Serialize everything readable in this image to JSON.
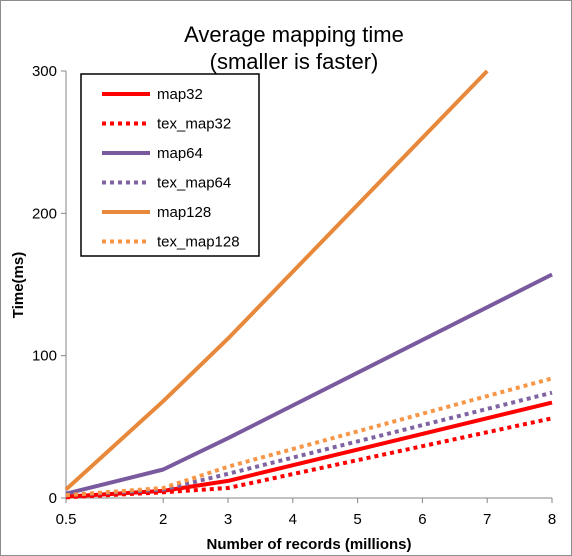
{
  "chart_data": {
    "type": "line",
    "title": "Average mapping time",
    "subtitle": "(smaller is faster)",
    "xlabel": "Number of records (millions)",
    "ylabel": "Time(ms)",
    "xlim": [
      0.5,
      8
    ],
    "ylim": [
      0,
      300
    ],
    "xticks": [
      "0.5",
      "2",
      "3",
      "4",
      "5",
      "6",
      "7",
      "8"
    ],
    "xtick_values": [
      0.5,
      2,
      3,
      4,
      5,
      6,
      7,
      8
    ],
    "yticks": [
      "0",
      "100",
      "200",
      "300"
    ],
    "ytick_values": [
      0,
      100,
      200,
      300
    ],
    "grid": false,
    "legend_position": "top-left",
    "series": [
      {
        "name": "map32",
        "color": "#ff0000",
        "style": "solid",
        "x": [
          0.5,
          2,
          3,
          8
        ],
        "y": [
          1,
          5,
          12,
          67
        ]
      },
      {
        "name": "tex_map32",
        "color": "#ff0000",
        "style": "dotted",
        "x": [
          0.5,
          2,
          3,
          8
        ],
        "y": [
          0.5,
          4,
          7,
          56
        ]
      },
      {
        "name": "map64",
        "color": "#7a5a9e",
        "style": "solid",
        "x": [
          0.5,
          2,
          3,
          8
        ],
        "y": [
          3,
          20,
          42,
          157
        ]
      },
      {
        "name": "tex_map64",
        "color": "#8064a2",
        "style": "dotted",
        "x": [
          0.5,
          2,
          3,
          8
        ],
        "y": [
          2,
          6,
          17,
          74
        ]
      },
      {
        "name": "map128",
        "color": "#e8883a",
        "style": "solid",
        "x": [
          0.5,
          2,
          3,
          7
        ],
        "y": [
          6,
          68,
          112,
          300
        ]
      },
      {
        "name": "tex_map128",
        "color": "#f79646",
        "style": "dotted",
        "x": [
          0.5,
          2,
          3,
          8
        ],
        "y": [
          2,
          7,
          22,
          84
        ]
      }
    ]
  }
}
